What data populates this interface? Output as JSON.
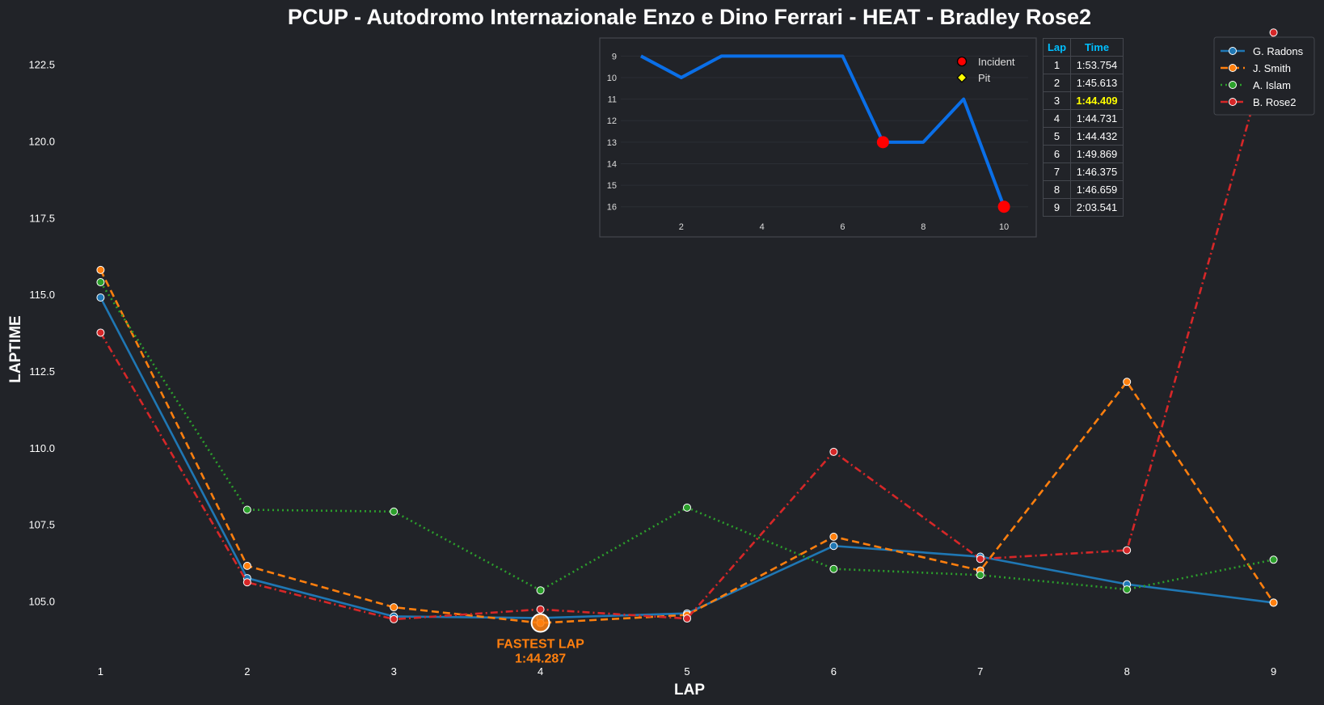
{
  "chart_data": [
    {
      "type": "line",
      "title": "PCUP - Autodromo Internazionale Enzo e Dino Ferrari - HEAT - Bradley Rose2",
      "xlabel": "LAP",
      "ylabel": "LAPTIME",
      "x": [
        1,
        2,
        3,
        4,
        5,
        6,
        7,
        8,
        9
      ],
      "xlim": [
        0.7,
        9.3
      ],
      "ylim": [
        103.3,
        123.6
      ],
      "yticks": [
        105.0,
        107.5,
        110.0,
        112.5,
        115.0,
        117.5,
        120.0,
        122.5
      ],
      "ytick_labels": [
        "105.0",
        "107.5",
        "110.0",
        "112.5",
        "115.0",
        "117.5",
        "120.0",
        "122.5"
      ],
      "grid": false,
      "legend_position": "top-right",
      "series": [
        {
          "name": "G. Radons",
          "color": "#1f77b4",
          "style": "solid",
          "values": [
            114.9,
            105.75,
            104.5,
            104.45,
            104.6,
            106.8,
            106.45,
            105.55,
            104.95
          ]
        },
        {
          "name": "J. Smith",
          "color": "#ff7f0e",
          "style": "dashed",
          "values": [
            115.8,
            106.15,
            104.8,
            104.287,
            104.55,
            107.1,
            106.0,
            112.15,
            104.95
          ]
        },
        {
          "name": "A. Islam",
          "color": "#2ca02c",
          "style": "dotted",
          "values": [
            115.4,
            107.98,
            107.92,
            105.35,
            108.05,
            106.05,
            105.85,
            105.38,
            106.35
          ]
        },
        {
          "name": "B. Rose2",
          "color": "#d62728",
          "style": "dashdot",
          "values": [
            113.754,
            105.613,
            104.409,
            104.731,
            104.432,
            109.869,
            106.375,
            106.659,
            123.541
          ]
        }
      ],
      "annotation": {
        "label": "FASTEST LAP",
        "value_text": "1:44.287",
        "x": 4,
        "y": 104.287,
        "series": "J. Smith"
      }
    },
    {
      "type": "line",
      "title": "",
      "x": [
        1,
        2,
        3,
        4,
        5,
        6,
        7,
        8,
        9,
        10
      ],
      "values": [
        9,
        10,
        9,
        9,
        9,
        9,
        13,
        13,
        11,
        16
      ],
      "xticks": [
        2,
        4,
        6,
        8,
        10
      ],
      "yticks": [
        9,
        10,
        11,
        12,
        13,
        14,
        15,
        16
      ],
      "ylim": [
        8.5,
        16.5
      ],
      "xlim": [
        0.5,
        10.7
      ],
      "y_inverted": true,
      "line_color": "#0a6fe8",
      "incidents_x": [
        7,
        10
      ],
      "legend": [
        {
          "label": "Incident",
          "color": "#ff0000"
        },
        {
          "label": "Pit",
          "color": "#ffff00"
        }
      ]
    }
  ],
  "lap_table": {
    "headers": [
      "Lap",
      "Time"
    ],
    "best_lap": 3,
    "rows": [
      [
        "1",
        "1:53.754"
      ],
      [
        "2",
        "1:45.613"
      ],
      [
        "3",
        "1:44.409"
      ],
      [
        "4",
        "1:44.731"
      ],
      [
        "5",
        "1:44.432"
      ],
      [
        "6",
        "1:49.869"
      ],
      [
        "7",
        "1:46.375"
      ],
      [
        "8",
        "1:46.659"
      ],
      [
        "9",
        "2:03.541"
      ]
    ]
  }
}
